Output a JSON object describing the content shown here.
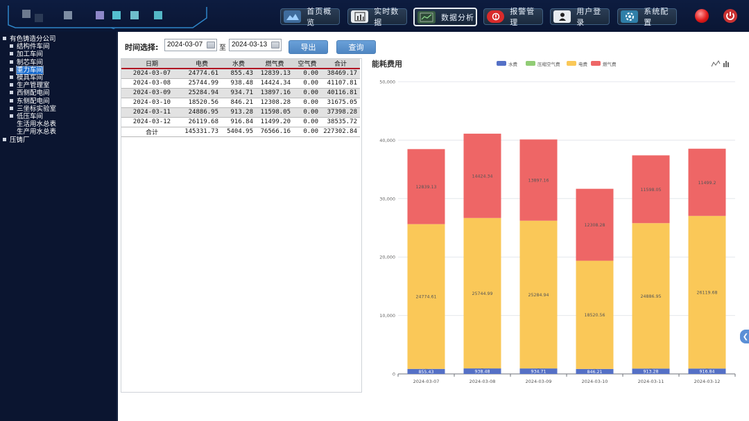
{
  "nav": [
    {
      "label": "首页概览",
      "icon": "overview-icon",
      "active": false
    },
    {
      "label": "实时数据",
      "icon": "realtime-data-icon",
      "active": false
    },
    {
      "label": "数据分析",
      "icon": "data-analysis-icon",
      "active": true
    },
    {
      "label": "报警管理",
      "icon": "alarm-icon",
      "active": false
    },
    {
      "label": "用户登录",
      "icon": "user-icon",
      "active": false
    },
    {
      "label": "系统配置",
      "icon": "settings-icon",
      "active": false
    }
  ],
  "tree": [
    {
      "label": "有色铸造分公司",
      "level": 0,
      "toggle": true,
      "selected": false
    },
    {
      "label": "结构件车间",
      "level": 1,
      "toggle": true,
      "selected": false
    },
    {
      "label": "加工车间",
      "level": 1,
      "toggle": true,
      "selected": false
    },
    {
      "label": "制芯车间",
      "level": 1,
      "toggle": true,
      "selected": false
    },
    {
      "label": "重力车间",
      "level": 1,
      "toggle": true,
      "selected": true
    },
    {
      "label": "模具车间",
      "level": 1,
      "toggle": true,
      "selected": false
    },
    {
      "label": "生产管理室",
      "level": 1,
      "toggle": true,
      "selected": false
    },
    {
      "label": "西侧配电间",
      "level": 1,
      "toggle": true,
      "selected": false
    },
    {
      "label": "东侧配电间",
      "level": 1,
      "toggle": true,
      "selected": false
    },
    {
      "label": "三坐标实验室",
      "level": 1,
      "toggle": true,
      "selected": false
    },
    {
      "label": "低压车间",
      "level": 1,
      "toggle": true,
      "selected": false
    },
    {
      "label": "生活用水总表",
      "level": 2,
      "toggle": false,
      "selected": false
    },
    {
      "label": "生产用水总表",
      "level": 2,
      "toggle": false,
      "selected": false
    },
    {
      "label": "压铸厂",
      "level": 0,
      "toggle": true,
      "selected": false
    }
  ],
  "filter": {
    "time_label": "时间选择:",
    "start_date": "2024-03-07",
    "separator": "至",
    "end_date": "2024-03-13",
    "export_label": "导出",
    "query_label": "查询"
  },
  "table": {
    "headers": [
      "日期",
      "电费",
      "水费",
      "燃气费",
      "空气费",
      "合计"
    ],
    "rows": [
      [
        "2024-03-07",
        "24774.61",
        "855.43",
        "12839.13",
        "0.00",
        "38469.17"
      ],
      [
        "2024-03-08",
        "25744.99",
        "938.48",
        "14424.34",
        "0.00",
        "41107.81"
      ],
      [
        "2024-03-09",
        "25284.94",
        "934.71",
        "13897.16",
        "0.00",
        "40116.81"
      ],
      [
        "2024-03-10",
        "18520.56",
        "846.21",
        "12308.28",
        "0.00",
        "31675.05"
      ],
      [
        "2024-03-11",
        "24886.95",
        "913.28",
        "11598.05",
        "0.00",
        "37398.28"
      ],
      [
        "2024-03-12",
        "26119.68",
        "916.84",
        "11499.20",
        "0.00",
        "38535.72"
      ]
    ],
    "total": [
      "合计",
      "145331.73",
      "5404.95",
      "76566.16",
      "0.00",
      "227302.84"
    ]
  },
  "chart_data": {
    "type": "bar",
    "stacked": true,
    "title": "能耗费用",
    "categories": [
      "2024-03-07",
      "2024-03-08",
      "2024-03-09",
      "2024-03-10",
      "2024-03-11",
      "2024-03-12"
    ],
    "series": [
      {
        "name": "水费",
        "color": "#5470c6",
        "values": [
          855.43,
          938.48,
          934.71,
          846.21,
          913.28,
          916.84
        ],
        "labels": [
          "855.43",
          "938.48",
          "934.71",
          "846.21",
          "913.28",
          "916.84"
        ]
      },
      {
        "name": "压缩空气费",
        "color": "#91cc75",
        "values": [
          0,
          0,
          0,
          0,
          0,
          0
        ],
        "labels": [
          "0",
          "0",
          "0",
          "0",
          "0",
          "0"
        ]
      },
      {
        "name": "电费",
        "color": "#fac858",
        "values": [
          24774.61,
          25744.99,
          25284.94,
          18520.56,
          24886.95,
          26119.68
        ],
        "labels": [
          "24774.61",
          "25744.99",
          "25284.94",
          "18520.56",
          "24886.95",
          "26119.68"
        ]
      },
      {
        "name": "燃气费",
        "color": "#ee6666",
        "values": [
          12839.13,
          14424.34,
          13897.16,
          12308.28,
          11598.05,
          11499.2
        ],
        "labels": [
          "12839.13",
          "14424.34",
          "13897.16",
          "12308.28",
          "11598.05",
          "11499.2"
        ]
      }
    ],
    "yticks": [
      "0",
      "10,000",
      "20,000",
      "30,000",
      "40,000",
      "50,000"
    ],
    "ylim": [
      0,
      50000
    ],
    "legend": "top",
    "grid": "horizontal",
    "toolbox": [
      "line-chart-icon",
      "bar-chart-icon"
    ]
  }
}
